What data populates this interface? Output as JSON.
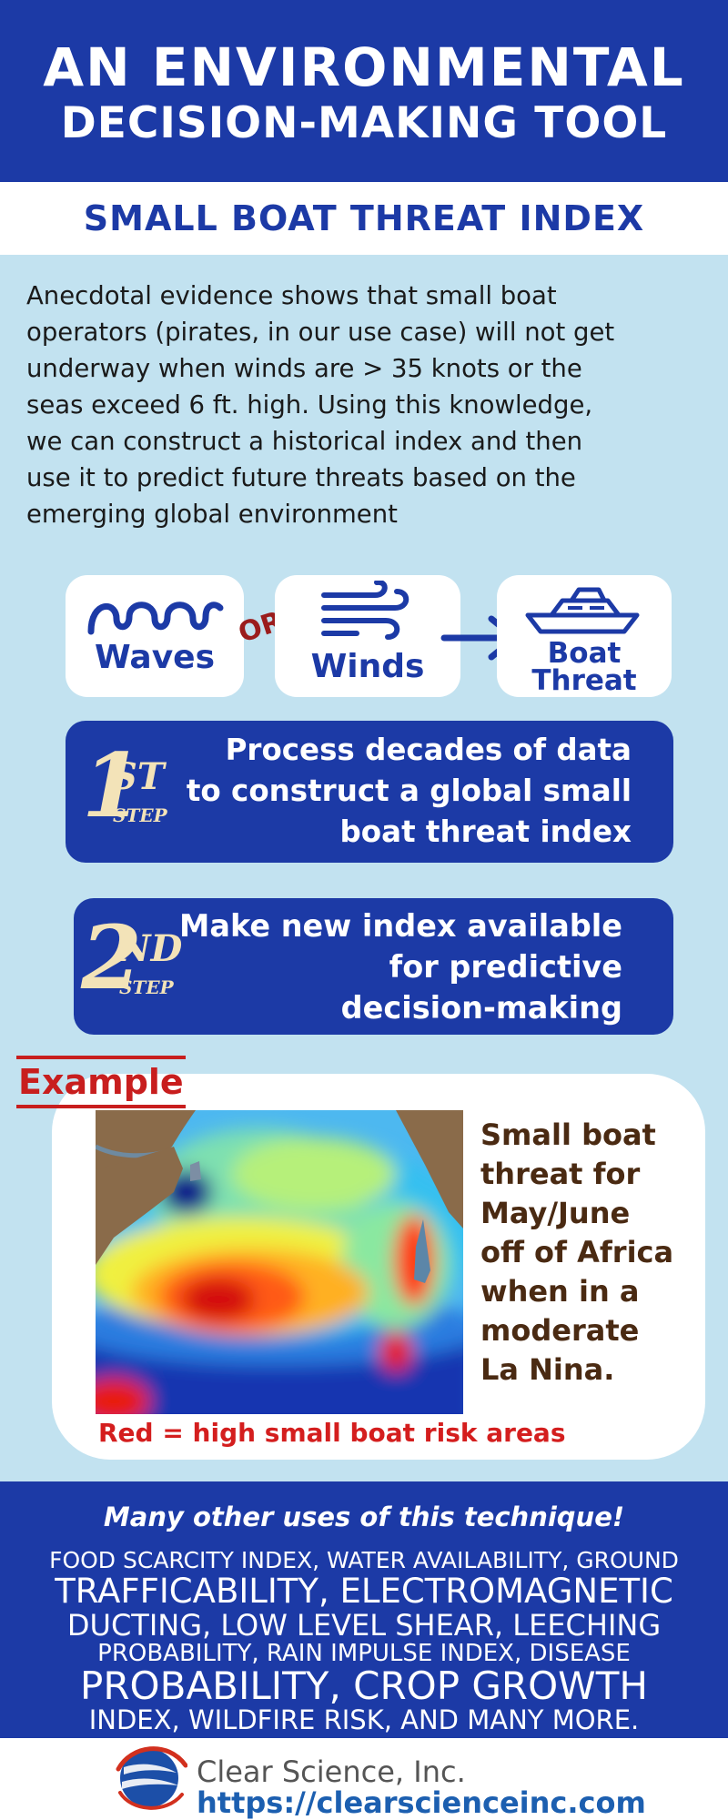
{
  "header": {
    "title_line1": "AN ENVIRONMENTAL",
    "title_line2": "DECISION-MAKING TOOL",
    "subtitle": "SMALL BOAT THREAT INDEX"
  },
  "intro": {
    "lines": [
      "Anecdotal evidence shows that small boat",
      "operators (pirates, in our use case) will not get",
      "underway when winds are > 35 knots or the",
      "seas exceed 6 ft. high.  Using this knowledge,",
      "we can construct a historical index and then",
      "use it to predict future threats based on the",
      "emerging global environment"
    ]
  },
  "icons": {
    "waves_label": "Waves",
    "or_label": "OR",
    "winds_label": "Winds",
    "boat_label_1": "Boat",
    "boat_label_2": "Threat",
    "waves_icon": "waves-icon",
    "winds_icon": "wind-icon",
    "arrow_icon": "arrow-right-icon",
    "boat_icon": "boat-icon"
  },
  "steps": [
    {
      "num": "1",
      "suffix": "ST",
      "word": "STEP",
      "lines": [
        "Process decades of data",
        "to construct a global small",
        "boat threat index"
      ]
    },
    {
      "num": "2",
      "suffix": "ND",
      "word": "STEP",
      "lines": [
        "Make new index available",
        "for predictive",
        "decision-making"
      ]
    }
  ],
  "example": {
    "label": "Example",
    "caption_lines": [
      "Small boat",
      "threat for",
      "May/June",
      "off of Africa",
      "when in a",
      "moderate",
      "La Nina."
    ],
    "legend": "Red = high small boat risk areas"
  },
  "uses": {
    "heading": "Many other uses of this technique!",
    "lines": [
      "FOOD SCARCITY INDEX, WATER AVAILABILITY, GROUND",
      "TRAFFICABILITY, ELECTROMAGNETIC",
      "DUCTING, LOW LEVEL SHEAR, LEECHING",
      "PROBABILITY, RAIN IMPULSE INDEX, DISEASE",
      "PROBABILITY, CROP GROWTH",
      "INDEX, WILDFIRE RISK, AND MANY MORE."
    ]
  },
  "footer": {
    "company": "Clear Science, Inc.",
    "url": "https://clearscienceinc.com",
    "logo_icon": "globe-logo-icon"
  },
  "colors": {
    "brand_blue": "#1c3aa6",
    "background": "#c2e2f0",
    "accent_red": "#c81e1e",
    "step_number": "#f3e3b8"
  }
}
